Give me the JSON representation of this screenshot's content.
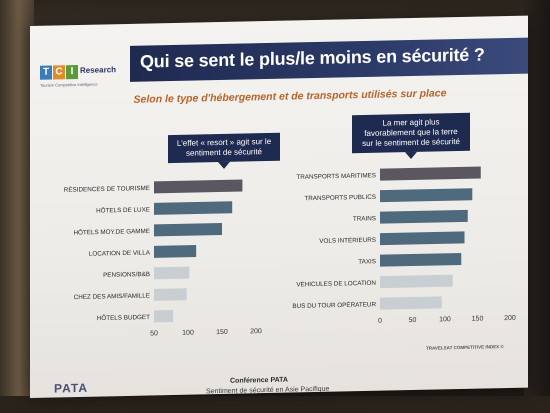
{
  "slide": {
    "title": "Qui se sent le plus/le moins en sécurité ?",
    "subtitle": "Selon le type d'hébergement et de transports utilisés sur place",
    "logo": {
      "letters": [
        "T",
        "C",
        "I"
      ],
      "word": "Research",
      "tagline": "Tourism Competitive Intelligence"
    },
    "callout_left": "L'effet « resort » agit sur le sentiment de sécurité",
    "callout_right": "La mer agit plus favorablement que la terre sur le sentiment de sécurité",
    "source_note": "TRAVELSAT COMPETITIVE INDEX ©",
    "footer": {
      "logo": "PATA",
      "conference": "Conférence PATA",
      "subtitle": "Sentiment de sécurité en Asie Pacifique"
    }
  },
  "colors": {
    "bar_dark": "#5b5660",
    "bar_blue": "#4f6a7d",
    "bar_light": "#c9ced3",
    "title_bar": "#1f2a50"
  },
  "chart_data": [
    {
      "type": "bar",
      "orientation": "horizontal",
      "categories": [
        "RÉSIDENCES DE TOURISME",
        "HÔTELS DE LUXE",
        "HÔTELS MOY.DE GAMME",
        "LOCATION DE VILLA",
        "PENSIONS/B&B",
        "CHEZ DES AMIS/FAMILLE",
        "HÔTELS BUDGET"
      ],
      "values": [
        180,
        165,
        150,
        112,
        102,
        98,
        78
      ],
      "xlim": [
        50,
        200
      ],
      "ticks": [
        "50",
        "100",
        "150",
        "200"
      ],
      "grid": false
    },
    {
      "type": "bar",
      "orientation": "horizontal",
      "categories": [
        "TRANSPORTS MARITIMES",
        "TRANSPORTS PUBLICS",
        "TRAINS",
        "VOLS INTÉRIEURS",
        "TAXIS",
        "VÉHICULES DE LOCATION",
        "BUS DU TOUR OPÉRATEUR"
      ],
      "values": [
        155,
        142,
        135,
        130,
        125,
        112,
        95
      ],
      "xlim": [
        0,
        200
      ],
      "ticks": [
        "0",
        "50",
        "100",
        "150",
        "200"
      ],
      "grid": false
    }
  ]
}
